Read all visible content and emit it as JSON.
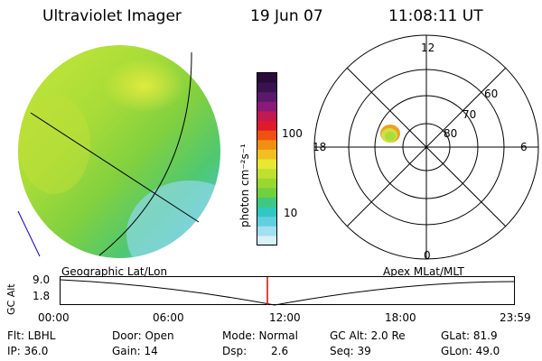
{
  "header": {
    "instrument": "Ultraviolet Imager",
    "date": "19 Jun 07",
    "time": "11:08:11 UT"
  },
  "colorbar": {
    "label": "photon cm⁻²s⁻¹",
    "ticks": [
      "100",
      "10"
    ],
    "colors": [
      "#2a0a3a",
      "#3b1250",
      "#5a1a6a",
      "#8a1a7a",
      "#c01a50",
      "#e01a2a",
      "#f05010",
      "#f09010",
      "#f0c020",
      "#e8e830",
      "#c0e030",
      "#98d830",
      "#70d040",
      "#40c880",
      "#30c8c0",
      "#60d0e0",
      "#a0e0f0",
      "#d8f0f8"
    ]
  },
  "geo_label": "Geographic Lat/Lon",
  "apex_label": "Apex MLat/MLT",
  "polar": {
    "mlt_labels": [
      "12",
      "6",
      "0",
      "18"
    ],
    "lat_labels": [
      "60",
      "70",
      "80"
    ]
  },
  "timeline": {
    "y_axis_title": "GC Alt",
    "y_ticks": [
      "9.0",
      "1.8"
    ],
    "x_ticks": [
      "00:00",
      "06:00",
      "12:00",
      "18:00",
      "23:59"
    ],
    "current_marker_color": "#e00000"
  },
  "status": {
    "row1": [
      {
        "key": "flt",
        "text": "Flt: LBHL"
      },
      {
        "key": "door",
        "text": "Door: Open"
      },
      {
        "key": "mode",
        "text": "Mode:  Normal"
      },
      {
        "key": "gcalt",
        "text": "GC Alt: 2.0 Re"
      },
      {
        "key": "glat",
        "text": "GLat:  81.9"
      }
    ],
    "row2": [
      {
        "key": "ip",
        "text": "IP: 36.0"
      },
      {
        "key": "gain",
        "text": "Gain: 14"
      },
      {
        "key": "dsp_label",
        "text": "Dsp:"
      },
      {
        "key": "dsp_value",
        "text": "2.6"
      },
      {
        "key": "seq",
        "text": "Seq: 39"
      },
      {
        "key": "glon",
        "text": "GLon:  49.0"
      }
    ]
  }
}
